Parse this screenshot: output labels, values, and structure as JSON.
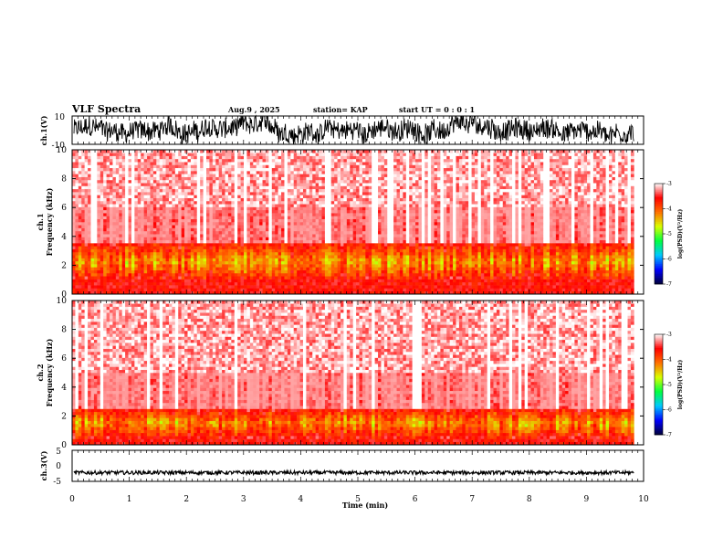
{
  "header": {
    "title": "VLF Spectra",
    "date": "Aug.9  , 2025",
    "station": "station= KAP",
    "start": "start  UT =   0 : 0  : 1"
  },
  "colors": {
    "background": "#ffffff",
    "axes": "#000000",
    "waveform": "#000000",
    "colormap": [
      "#00003a",
      "#0000ff",
      "#00c8ff",
      "#00ff40",
      "#d8ff00",
      "#ff7000",
      "#ff0000",
      "#ffffff"
    ]
  },
  "chart_data": [
    {
      "type": "line",
      "panel": "ch1-waveform",
      "ylabel": "ch.1(V)",
      "ylim": [
        -10,
        10
      ],
      "y_ticks": [
        "10",
        "-10"
      ],
      "xlim": [
        0,
        10
      ],
      "x_unit": "min",
      "data_extent_min": 9.83,
      "series_summary": {
        "min": -10,
        "max": 10,
        "typical_range": [
          -9,
          9
        ]
      }
    },
    {
      "type": "heatmap",
      "panel": "ch1-spectrogram",
      "ylabel": "ch.1\nFrequency  (kHz)",
      "ylim": [
        0,
        10
      ],
      "y_ticks": [
        "0",
        "2",
        "4",
        "6",
        "8",
        "10"
      ],
      "xlim": [
        0,
        10
      ],
      "data_extent_min": 9.83,
      "colorbar": {
        "label": "log(PSD)(V²/Hz)",
        "range": [
          -7,
          -3
        ],
        "ticks": [
          "-3",
          "-4",
          "-5",
          "-6",
          "-7"
        ]
      },
      "band_summary": {
        "intense_band_khz": [
          1,
          3.5
        ],
        "peak_log_psd": -4.5,
        "background_log_psd": -3.2
      }
    },
    {
      "type": "heatmap",
      "panel": "ch2-spectrogram",
      "ylabel": "ch.2\nFrequency  (kHz)",
      "ylim": [
        0,
        10
      ],
      "y_ticks": [
        "0",
        "2",
        "4",
        "6",
        "8",
        "10"
      ],
      "xlim": [
        0,
        10
      ],
      "data_extent_min": 9.83,
      "colorbar": {
        "label": "log(PSD)(V²/Hz)",
        "range": [
          -7,
          -3
        ],
        "ticks": [
          "-3",
          "-4",
          "-5",
          "-6",
          "-7"
        ]
      },
      "band_summary": {
        "intense_band_khz": [
          0.5,
          2.5
        ],
        "peak_log_psd": -4.5,
        "background_log_psd": -3.2
      }
    },
    {
      "type": "line",
      "panel": "ch3-waveform",
      "ylabel": "ch.3(V)",
      "ylim": [
        -5,
        5
      ],
      "y_ticks": [
        "5",
        "0",
        "-5"
      ],
      "xlim": [
        0,
        10
      ],
      "data_extent_min": 9.83,
      "series_summary": {
        "center": -2.2,
        "typical_range": [
          -2.8,
          -1.6
        ]
      }
    }
  ],
  "x_axis": {
    "label": "Time  (min)",
    "ticks": [
      "0",
      "1",
      "2",
      "3",
      "4",
      "5",
      "6",
      "7",
      "8",
      "9",
      "10"
    ]
  }
}
